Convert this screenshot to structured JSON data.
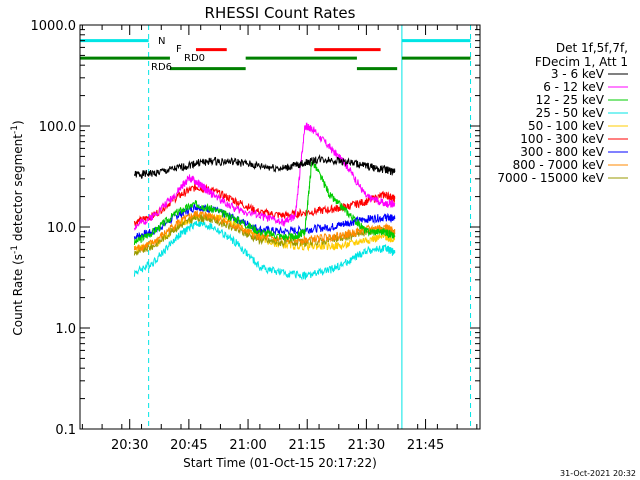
{
  "chart_data": {
    "type": "line",
    "title": "RHESSI Count Rates",
    "xlabel": "Start Time (01-Oct-15 20:17:22)",
    "ylabel": "Count Rate (s",
    "ylabel_sup1": "-1",
    "ylabel_mid": " detector segment",
    "ylabel_sup2": "-1",
    "ylabel_end": ")",
    "y_scale": "log",
    "ylim": [
      0.1,
      1000
    ],
    "xlim_minutes": [
      20.29,
      21.98
    ],
    "x_tick_labels": [
      "20:30",
      "20:45",
      "21:00",
      "21:15",
      "21:30",
      "21:45"
    ],
    "x_tick_minutes": [
      20.5,
      20.75,
      21.0,
      21.25,
      21.5,
      21.75
    ],
    "y_tick_labels": [
      "1000.0",
      "100.0",
      "10.0",
      "1.0",
      "0.1"
    ],
    "y_tick_values": [
      1000,
      100,
      10,
      1,
      0.1
    ],
    "legend_placement": "right",
    "legend_header": [
      "Det 1f,5f,7f,",
      "FDecim 1, Att 1"
    ],
    "series": [
      {
        "name": "3 - 6 keV",
        "color": "#000000",
        "x": [
          20.52,
          20.6,
          20.7,
          20.78,
          20.85,
          20.95,
          21.05,
          21.15,
          21.22,
          21.3,
          21.4,
          21.5,
          21.58,
          21.62
        ],
        "y": [
          33,
          34,
          38,
          43,
          45,
          44,
          40,
          38,
          42,
          47,
          45,
          40,
          37,
          35
        ]
      },
      {
        "name": "6 - 12 keV",
        "color": "#ff00ff",
        "x": [
          20.52,
          20.6,
          20.7,
          20.75,
          20.8,
          20.85,
          20.95,
          21.05,
          21.15,
          21.2,
          21.24,
          21.27,
          21.35,
          21.42,
          21.5,
          21.58,
          21.62
        ],
        "y": [
          10,
          13,
          22,
          31,
          26,
          21,
          15,
          13,
          11,
          13,
          100,
          95,
          60,
          40,
          20,
          17,
          17
        ]
      },
      {
        "name": "12 - 25 keV",
        "color": "#00cc00",
        "x": [
          20.52,
          20.6,
          20.7,
          20.78,
          20.85,
          20.95,
          21.05,
          21.15,
          21.2,
          21.24,
          21.27,
          21.35,
          21.42,
          21.5,
          21.58,
          21.62
        ],
        "y": [
          7,
          9,
          14,
          17,
          15,
          12,
          9,
          8,
          8,
          9,
          46,
          20,
          14,
          9,
          9,
          8
        ]
      },
      {
        "name": "25 - 50 keV",
        "color": "#00e5e5",
        "x": [
          20.52,
          20.6,
          20.7,
          20.78,
          20.85,
          20.95,
          21.05,
          21.15,
          21.25,
          21.35,
          21.42,
          21.5,
          21.58,
          21.62
        ],
        "y": [
          3.5,
          4.5,
          8,
          11,
          10,
          7,
          4,
          3.5,
          3.3,
          3.8,
          4.5,
          5.8,
          6.2,
          5.5
        ]
      },
      {
        "name": "50 - 100 keV",
        "color": "#ffcc00",
        "x": [
          20.52,
          20.62,
          20.72,
          20.8,
          20.9,
          21.0,
          21.1,
          21.2,
          21.3,
          21.4,
          21.5,
          21.58,
          21.62
        ],
        "y": [
          6,
          7,
          11,
          13,
          12,
          9,
          7,
          6.5,
          6.5,
          6.5,
          7.5,
          8,
          7.5
        ]
      },
      {
        "name": "100 - 300 keV",
        "color": "#ff0000",
        "x": [
          20.52,
          20.6,
          20.7,
          20.78,
          20.85,
          20.95,
          21.05,
          21.15,
          21.25,
          21.35,
          21.42,
          21.5,
          21.58,
          21.62
        ],
        "y": [
          11,
          13,
          20,
          25,
          23,
          18,
          14,
          13,
          14,
          15,
          16,
          18,
          21,
          19
        ]
      },
      {
        "name": "300 - 800 keV",
        "color": "#0000ff",
        "x": [
          20.52,
          20.6,
          20.7,
          20.78,
          20.85,
          20.95,
          21.05,
          21.15,
          21.25,
          21.35,
          21.42,
          21.5,
          21.58,
          21.62
        ],
        "y": [
          8,
          9,
          13,
          16,
          15,
          12,
          9.5,
          9,
          9.5,
          10,
          11,
          12,
          12.5,
          12
        ]
      },
      {
        "name": "800 - 7000 keV",
        "color": "#ff8800",
        "x": [
          20.52,
          20.6,
          20.7,
          20.78,
          20.85,
          20.95,
          21.05,
          21.15,
          21.25,
          21.35,
          21.42,
          21.5,
          21.58,
          21.62
        ],
        "y": [
          6,
          7,
          11,
          13.5,
          13,
          10,
          8,
          7.5,
          7.5,
          8,
          8.5,
          9.5,
          10,
          9
        ]
      },
      {
        "name": "7000 - 15000 keV",
        "color": "#999900",
        "x": [
          20.52,
          20.6,
          20.7,
          20.78,
          20.85,
          20.95,
          21.05,
          21.15,
          21.25,
          21.35,
          21.42,
          21.5,
          21.58,
          21.62
        ],
        "y": [
          5.5,
          6.5,
          10,
          12.5,
          12,
          9.5,
          7.5,
          7,
          7,
          7.5,
          8,
          9,
          9.5,
          8.5
        ]
      }
    ],
    "annotations": [
      {
        "label": "N",
        "color": "#00e5e5"
      },
      {
        "label": "F",
        "color": "#ff0000"
      },
      {
        "label": "RD0",
        "color": "#008000"
      },
      {
        "label": "RD6",
        "color": "#008000"
      }
    ],
    "state_bars": [
      {
        "label": "N",
        "color": "#00e5e5",
        "y": 700,
        "spans": [
          [
            20.29,
            20.58
          ],
          [
            21.65,
            21.94
          ]
        ]
      },
      {
        "label": "F",
        "color": "#ff0000",
        "y": 570,
        "spans": [
          [
            20.78,
            20.91
          ],
          [
            21.28,
            21.56
          ]
        ]
      },
      {
        "label": "RD0",
        "color": "#008000",
        "y": 470,
        "spans": [
          [
            20.29,
            20.67
          ],
          [
            20.99,
            21.46
          ],
          [
            21.65,
            21.94
          ]
        ]
      },
      {
        "label": "RD6",
        "color": "#008000",
        "y": 370,
        "spans": [
          [
            20.67,
            20.99
          ],
          [
            21.46,
            21.63
          ]
        ]
      }
    ],
    "vertical_lines": [
      {
        "x": 20.29,
        "color": "#00e5e5",
        "style": "solid"
      },
      {
        "x": 20.58,
        "color": "#00e5e5",
        "style": "dashed"
      },
      {
        "x": 21.65,
        "color": "#00e5e5",
        "style": "solid"
      },
      {
        "x": 21.94,
        "color": "#00e5e5",
        "style": "dashed"
      }
    ]
  },
  "footer": {
    "timestamp": "31-Oct-2021 20:32"
  }
}
